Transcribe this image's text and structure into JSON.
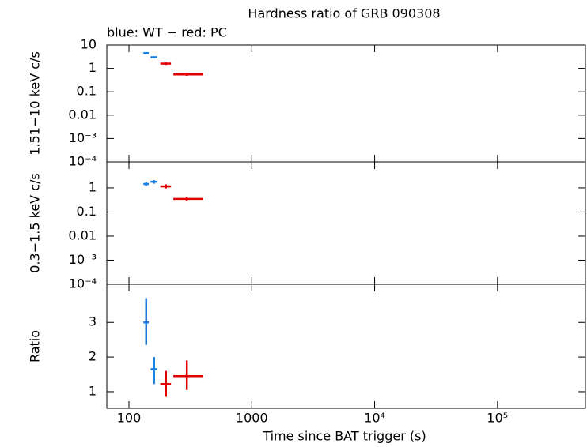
{
  "chart_data": [
    {
      "type": "errorbar",
      "title": "Hardness ratio of GRB 090308",
      "subtitle": "blue: WT − red: PC",
      "y_label": "1.51−10 keV c/s",
      "log_x": true,
      "log_y": true,
      "xlim": [
        66,
        520000
      ],
      "xticks": [
        100,
        1000,
        10000,
        100000
      ],
      "ylim": [
        0.0001,
        10
      ],
      "yticks": [
        10,
        1,
        0.1,
        0.01,
        {
          "value": 0.001,
          "label": "10⁻³"
        },
        {
          "value": 0.0001,
          "label": "10⁻⁴"
        }
      ],
      "series": [
        {
          "name": "WT",
          "color": "#1a7fe0",
          "x": [
            138,
            160
          ],
          "x_low": [
            131,
            150
          ],
          "x_high": [
            145,
            170
          ],
          "values": [
            4.5,
            3.0
          ],
          "y_low": [
            4.0,
            2.7
          ],
          "y_high": [
            5.0,
            3.3
          ]
        },
        {
          "name": "PC",
          "color": "#e00000",
          "x": [
            200,
            296
          ],
          "x_low": [
            180,
            230
          ],
          "x_high": [
            220,
            400
          ],
          "values": [
            1.6,
            0.55
          ],
          "y_low": [
            1.4,
            0.48
          ],
          "y_high": [
            1.8,
            0.62
          ]
        }
      ]
    },
    {
      "type": "errorbar",
      "y_label": "0.3−1.5 keV c/s",
      "log_x": true,
      "log_y": true,
      "xlim": [
        66,
        520000
      ],
      "xticks": [
        100,
        1000,
        10000,
        100000
      ],
      "ylim": [
        0.0001,
        12
      ],
      "yticks": [
        1,
        0.1,
        0.01,
        {
          "value": 0.001,
          "label": "10⁻³"
        },
        {
          "value": 0.0001,
          "label": "10⁻⁴"
        }
      ],
      "series": [
        {
          "name": "WT",
          "color": "#1a7fe0",
          "x": [
            138,
            160
          ],
          "x_low": [
            131,
            150
          ],
          "x_high": [
            145,
            170
          ],
          "values": [
            1.45,
            1.8
          ],
          "y_low": [
            1.2,
            1.5
          ],
          "y_high": [
            1.7,
            2.1
          ]
        },
        {
          "name": "PC",
          "color": "#e00000",
          "x": [
            200,
            296
          ],
          "x_low": [
            180,
            230
          ],
          "x_high": [
            220,
            400
          ],
          "values": [
            1.15,
            0.35
          ],
          "y_low": [
            0.95,
            0.3
          ],
          "y_high": [
            1.4,
            0.4
          ]
        }
      ]
    },
    {
      "type": "errorbar",
      "y_label": "Ratio",
      "x_label": "Time since BAT trigger (s)",
      "log_x": true,
      "log_y": false,
      "xlim": [
        66,
        520000
      ],
      "xticks": [
        100,
        1000,
        {
          "value": 10000,
          "label": "10⁴"
        },
        {
          "value": 100000,
          "label": "10⁵"
        }
      ],
      "ylim": [
        0.52,
        4.1
      ],
      "yticks": [
        1,
        2,
        3
      ],
      "series": [
        {
          "name": "WT",
          "color": "#1a7fe0",
          "x": [
            138,
            160
          ],
          "x_low": [
            131,
            150
          ],
          "x_high": [
            145,
            170
          ],
          "values": [
            3.0,
            1.65
          ],
          "y_low": [
            2.35,
            1.22
          ],
          "y_high": [
            3.7,
            2.0
          ]
        },
        {
          "name": "PC",
          "color": "#e00000",
          "x": [
            200,
            296
          ],
          "x_low": [
            180,
            230
          ],
          "x_high": [
            220,
            400
          ],
          "values": [
            1.22,
            1.45
          ],
          "y_low": [
            0.85,
            1.05
          ],
          "y_high": [
            1.6,
            1.9
          ]
        }
      ]
    }
  ]
}
